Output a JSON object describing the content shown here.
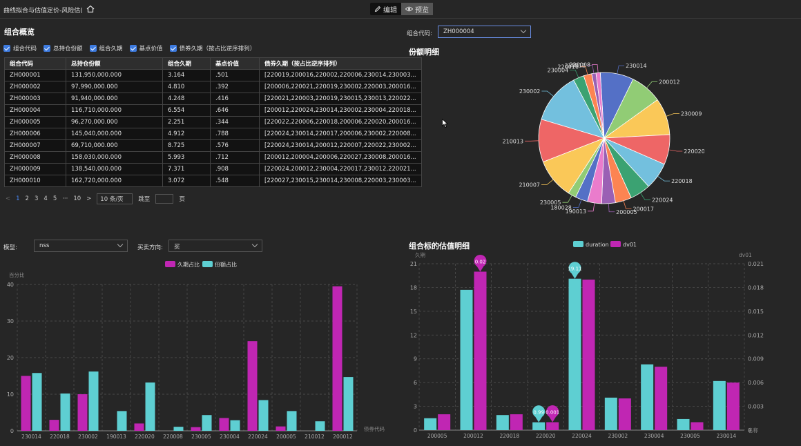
{
  "header": {
    "title": "曲线拟合与估值定价-风险估(",
    "edit_label": "编辑",
    "preview_label": "预览"
  },
  "overview": {
    "title": "组合概览",
    "checkboxes": [
      "组合代码",
      "总持仓份额",
      "组合久期",
      "基点价值",
      "债券久期（按占比逆序排列）"
    ],
    "columns": [
      "组合代码",
      "总持仓份额",
      "组合久期",
      "基点价值",
      "债券久期（按占比逆序排列）"
    ],
    "rows": [
      [
        "ZH000001",
        "131,950,000.000",
        "3.164",
        ".501",
        "[220019,200016,220002,220006,230014,230003..."
      ],
      [
        "ZH000002",
        "97,990,000.000",
        "4.810",
        ".392",
        "[200006,220021,220019,230002,220003,200016..."
      ],
      [
        "ZH000003",
        "91,940,000.000",
        "4.248",
        ".416",
        "[220021,220003,220019,230015,230013,220022..."
      ],
      [
        "ZH000004",
        "116,710,000.000",
        "6.554",
        ".646",
        "[200012,220024,230014,230002,230004,220018..."
      ],
      [
        "ZH000005",
        "96,270,000.000",
        "2.251",
        ".344",
        "[220022,220006,220018,200006,220020,200016..."
      ],
      [
        "ZH000006",
        "145,040,000.000",
        "4.912",
        ".788",
        "[220024,230014,220017,200006,230002,220008..."
      ],
      [
        "ZH000007",
        "69,710,000.000",
        "8.725",
        ".576",
        "[220024,230014,200012,220007,220022,230002..."
      ],
      [
        "ZH000008",
        "158,030,000.000",
        "5.993",
        ".712",
        "[200012,200004,200006,220027,230008,200016..."
      ],
      [
        "ZH000009",
        "138,540,000.000",
        "7.371",
        ".908",
        "[220024,200012,230004,220017,230012,220021..."
      ],
      [
        "ZH000010",
        "162,720,000.000",
        "3.072",
        ".548",
        "[220027,230015,230014,230008,220003,230003..."
      ]
    ],
    "pager": {
      "prev": "<",
      "pages": [
        "1",
        "2",
        "3",
        "4",
        "5",
        "···",
        "10"
      ],
      "next": ">",
      "page_size": "10 条/页",
      "jump_label": "跳至",
      "page_unit": "页"
    }
  },
  "portfolio_select": {
    "label": "组合代码:",
    "value": "ZH000004"
  },
  "model_select": {
    "label": "模型:",
    "value": "nss"
  },
  "direction_select": {
    "label": "买卖方向:",
    "value": "买"
  },
  "colors": {
    "magenta": "#c026b3",
    "cyan": "#5ecfd2",
    "accent": "#4a8cff"
  },
  "chart_data": [
    {
      "type": "pie",
      "title": "份额明细",
      "labels": [
        "230014",
        "200012",
        "230009",
        "220020",
        "220018",
        "220024",
        "200017",
        "200005",
        "190013",
        "180028",
        "230005",
        "210007",
        "210013",
        "230002",
        "230004",
        "220016",
        "210012",
        "220008"
      ],
      "values": [
        7.8,
        7.4,
        8.6,
        7.0,
        6.3,
        4.8,
        3.8,
        3.2,
        3.3,
        2.9,
        1.9,
        9.4,
        10.0,
        12.0,
        2.5,
        1.9,
        1.0,
        1.0
      ],
      "colors": [
        "#5470c6",
        "#91cc75",
        "#fac858",
        "#ee6666",
        "#73c0de",
        "#3ba272",
        "#fc8452",
        "#9a60b4",
        "#ea7ccc",
        "#5470c6",
        "#91cc75",
        "#fac858",
        "#ee6666",
        "#73c0de",
        "#3ba272",
        "#fc8452",
        "#9a60b4",
        "#ea7ccc"
      ]
    },
    {
      "type": "bar",
      "title": "",
      "ylabel": "百分比",
      "xlabel": "债券代码",
      "ylim": [
        0,
        40
      ],
      "yticks": [
        "0",
        "10",
        "20",
        "30",
        "40"
      ],
      "categories": [
        "230014",
        "220018",
        "230002",
        "190013",
        "220020",
        "220008",
        "230005",
        "230004",
        "220024",
        "200005",
        "210012",
        "200012"
      ],
      "series": [
        {
          "name": "久期占比",
          "color": "#c026b3",
          "values": [
            15,
            3,
            10,
            0,
            2,
            0,
            1,
            3.5,
            24.5,
            1.2,
            0,
            39.5
          ]
        },
        {
          "name": "份额占比",
          "color": "#5ecfd2",
          "values": [
            15.8,
            10.2,
            16.2,
            5.4,
            13.2,
            1.1,
            4.3,
            2.9,
            8.4,
            5.4,
            2.6,
            14.7
          ]
        }
      ]
    },
    {
      "type": "bar",
      "title": "组合标的估值明细",
      "ylabel": "久期",
      "ylabel_right": "dv01",
      "xlabel": "名称",
      "ylim": [
        0,
        21
      ],
      "ylim_right": [
        0,
        0.021
      ],
      "yticks": [
        "0",
        "3",
        "6",
        "9",
        "12",
        "15",
        "18",
        "21"
      ],
      "yticks_right": [
        "0",
        "0.003",
        "0.006",
        "0.009",
        "0.012",
        "0.015",
        "0.018",
        "0.021"
      ],
      "categories": [
        "200005",
        "200012",
        "220018",
        "220020",
        "220024",
        "230002",
        "230004",
        "230005",
        "230014"
      ],
      "series": [
        {
          "name": "duration",
          "color": "#5ecfd2",
          "values": [
            1.5,
            17.7,
            1.9,
            0.99,
            19.11,
            4.1,
            8.3,
            1.4,
            6.2
          ]
        },
        {
          "name": "dv01",
          "color": "#c026b3",
          "values": [
            0.002,
            0.02,
            0.002,
            0.001,
            0.019,
            0.004,
            0.008,
            0.001,
            0.006
          ]
        }
      ],
      "markers": [
        "0.02",
        "0.99",
        "0.001",
        "19.11"
      ]
    }
  ]
}
